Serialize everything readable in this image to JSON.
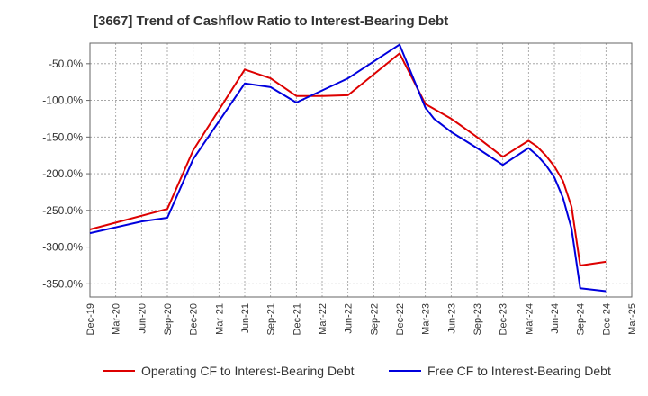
{
  "chart_data": {
    "type": "line",
    "title": "[3667]  Trend of Cashflow Ratio to Interest-Bearing Debt",
    "xlabel": "",
    "ylabel": "",
    "x_tick_labels": [
      "Dec-19",
      "Mar-20",
      "Jun-20",
      "Sep-20",
      "Dec-20",
      "Mar-21",
      "Jun-21",
      "Sep-21",
      "Dec-21",
      "Mar-22",
      "Jun-22",
      "Sep-22",
      "Dec-22",
      "Mar-23",
      "Jun-23",
      "Sep-23",
      "Dec-23",
      "Mar-24",
      "Jun-24",
      "Sep-24",
      "Dec-24",
      "Mar-25"
    ],
    "y_ticks": [
      -50,
      -100,
      -150,
      -200,
      -250,
      -300,
      -350
    ],
    "y_tick_labels": [
      "-50.0%",
      "-100.0%",
      "-150.0%",
      "-200.0%",
      "-250.0%",
      "-300.0%",
      "-350.0%"
    ],
    "ylim": [
      -368,
      -22
    ],
    "grid": true,
    "legend_position": "bottom",
    "series": [
      {
        "name": "Operating CF to Interest-Bearing Debt",
        "color": "#dd0000",
        "points": [
          [
            "Dec-19",
            -276
          ],
          [
            "Sep-20",
            -248
          ],
          [
            "Dec-20",
            -168
          ],
          [
            "Jun-21",
            -58
          ],
          [
            "Sep-21",
            -70
          ],
          [
            "Dec-21",
            -94
          ],
          [
            "Mar-22",
            -94
          ],
          [
            "Jun-22",
            -93
          ],
          [
            "Dec-22",
            -36
          ],
          [
            "Mar-23",
            -105
          ],
          [
            "Jun-23",
            -125
          ],
          [
            "Sep-23",
            -150
          ],
          [
            "Dec-23",
            -177
          ],
          [
            "Mar-24",
            -155
          ],
          [
            "Apr-24",
            -163
          ],
          [
            "May-24",
            -175
          ],
          [
            "Jun-24",
            -190
          ],
          [
            "Jul-24",
            -210
          ],
          [
            "Aug-24",
            -245
          ],
          [
            "Sep-24",
            -325
          ],
          [
            "Dec-24",
            -320
          ]
        ]
      },
      {
        "name": "Free CF to Interest-Bearing Debt",
        "color": "#0000dd",
        "points": [
          [
            "Dec-19",
            -281
          ],
          [
            "Jun-20",
            -265
          ],
          [
            "Sep-20",
            -260
          ],
          [
            "Dec-20",
            -180
          ],
          [
            "Jun-21",
            -77
          ],
          [
            "Sep-21",
            -82
          ],
          [
            "Dec-21",
            -103
          ],
          [
            "Jun-22",
            -70
          ],
          [
            "Dec-22",
            -24
          ],
          [
            "Mar-23",
            -110
          ],
          [
            "Apr-23",
            -125
          ],
          [
            "Jun-23",
            -143
          ],
          [
            "Sep-23",
            -165
          ],
          [
            "Dec-23",
            -188
          ],
          [
            "Mar-24",
            -165
          ],
          [
            "Apr-24",
            -175
          ],
          [
            "May-24",
            -188
          ],
          [
            "Jun-24",
            -205
          ],
          [
            "Jul-24",
            -233
          ],
          [
            "Aug-24",
            -275
          ],
          [
            "Sep-24",
            -356
          ],
          [
            "Dec-24",
            -360
          ]
        ]
      }
    ]
  }
}
